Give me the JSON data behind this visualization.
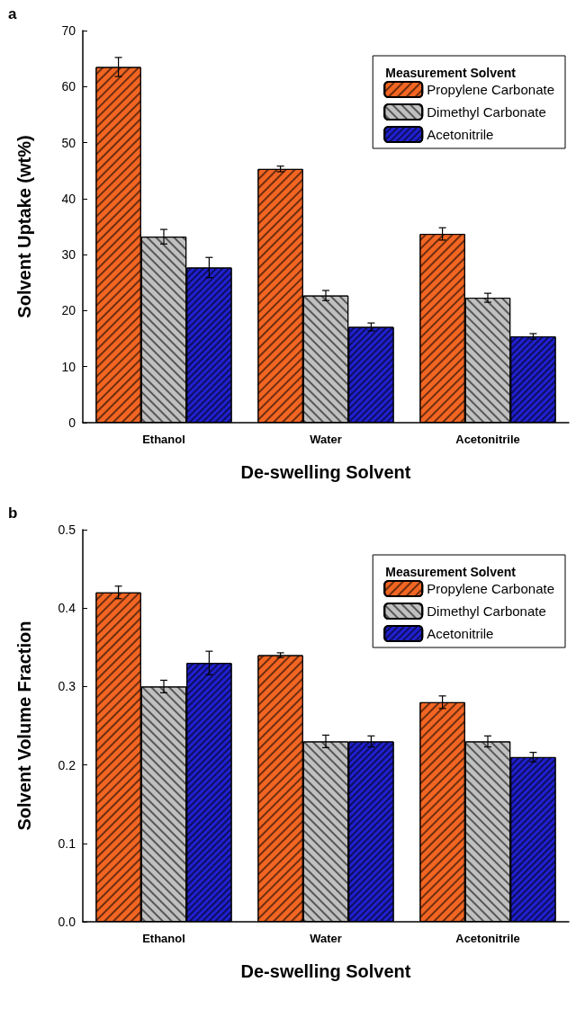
{
  "chart_data": [
    {
      "type": "bar",
      "title": "a",
      "xlabel": "De-swelling Solvent",
      "ylabel": "Solvent Uptake (wt%)",
      "legend_title": "Measurement Solvent",
      "legend": "top right",
      "grid": false,
      "categories": [
        "Ethanol",
        "Water",
        "Acetonitrile"
      ],
      "series": [
        {
          "name": "Propylene Carbonate",
          "color": "#f26522",
          "values": [
            63.5,
            45.3,
            33.7
          ],
          "errors": [
            1.7,
            0.5,
            1.1
          ]
        },
        {
          "name": "Dimethyl Carbonate",
          "color": "#c0c0c0",
          "values": [
            33.2,
            22.7,
            22.3
          ],
          "errors": [
            1.3,
            0.9,
            0.8
          ]
        },
        {
          "name": "Acetonitrile",
          "color": "#2020d0",
          "values": [
            27.7,
            17.1,
            15.4
          ],
          "errors": [
            1.8,
            0.7,
            0.5
          ]
        }
      ],
      "ylim": [
        0,
        70
      ],
      "yticks": [
        0,
        10,
        20,
        30,
        40,
        50,
        60,
        70
      ]
    },
    {
      "type": "bar",
      "title": "b",
      "xlabel": "De-swelling Solvent",
      "ylabel": "Solvent Volume Fraction",
      "legend_title": "Measurement Solvent",
      "legend": "top right",
      "grid": false,
      "categories": [
        "Ethanol",
        "Water",
        "Acetonitrile"
      ],
      "series": [
        {
          "name": "Propylene Carbonate",
          "color": "#f26522",
          "values": [
            0.42,
            0.34,
            0.28
          ],
          "errors": [
            0.008,
            0.003,
            0.008
          ]
        },
        {
          "name": "Dimethyl Carbonate",
          "color": "#c0c0c0",
          "values": [
            0.3,
            0.23,
            0.23
          ],
          "errors": [
            0.008,
            0.008,
            0.007
          ]
        },
        {
          "name": "Acetonitrile",
          "color": "#2020d0",
          "values": [
            0.33,
            0.23,
            0.21
          ],
          "errors": [
            0.015,
            0.007,
            0.006
          ]
        }
      ],
      "ylim": [
        0,
        0.5
      ],
      "yticks": [
        {
          "value": 0,
          "label": "0.0"
        },
        0.1,
        0.2,
        0.3,
        0.4,
        0.5
      ]
    }
  ]
}
